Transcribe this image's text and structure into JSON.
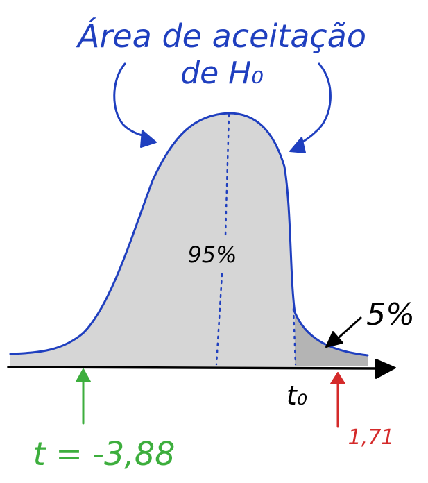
{
  "title_line1": "Área de aceitação",
  "title_line2": "de H₀",
  "center_label": "95%",
  "tail_label": "5%",
  "critical_label": "t₀",
  "left_stat_label": "t = -3,88",
  "right_stat_label": "1,71",
  "colors": {
    "curve": "#1f3fbf",
    "fill": "#d6d6d6",
    "tail_fill": "#b4b4b4",
    "axis": "#000000",
    "green": "#3dae3d",
    "red": "#d42a2a",
    "text_blue": "#1f3fbf"
  }
}
